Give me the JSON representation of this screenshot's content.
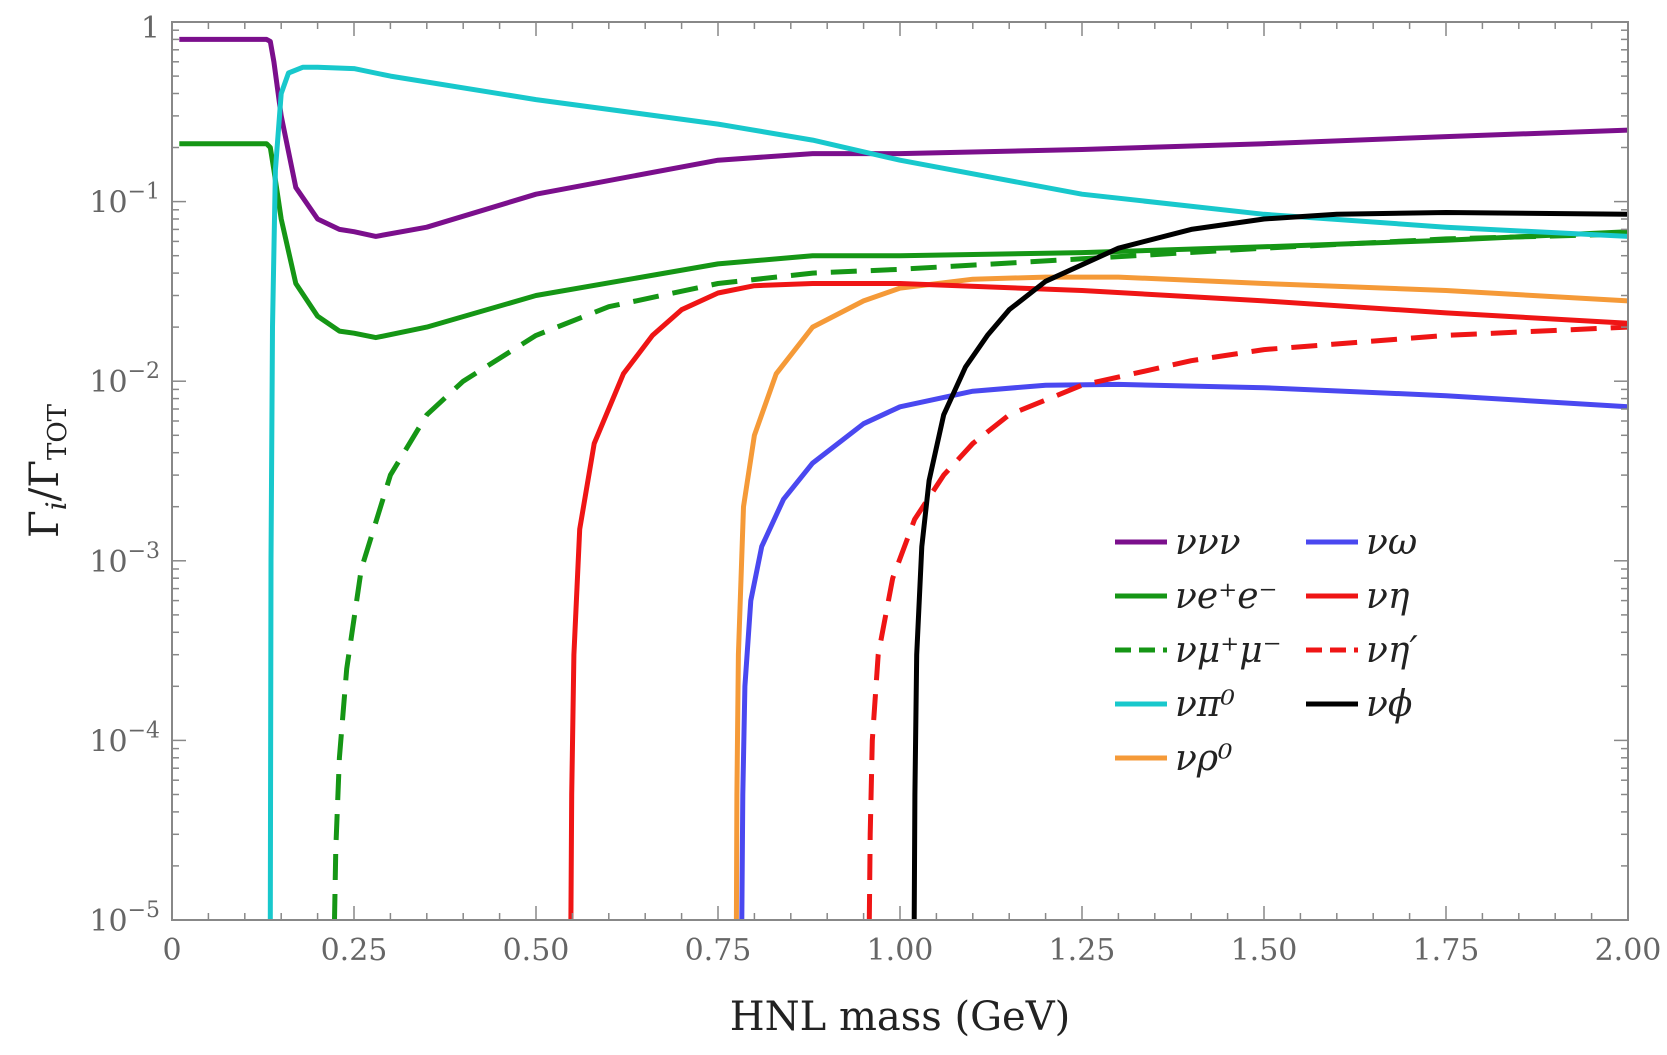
{
  "chart_data": {
    "type": "line",
    "title": "",
    "xlabel": "HNL mass (GeV)",
    "ylabel": "Γi/ΓTOT",
    "xlim": [
      0,
      2.0
    ],
    "ylim": [
      1e-05,
      1
    ],
    "yscale": "log",
    "x_ticks": [
      "0",
      "0.25",
      "0.50",
      "0.75",
      "1.00",
      "1.25",
      "1.50",
      "1.75",
      "2.00"
    ],
    "y_ticks": [
      {
        "value": 1e-05,
        "base": "10",
        "exp": "−5"
      },
      {
        "value": 0.0001,
        "base": "10",
        "exp": "−4"
      },
      {
        "value": 0.001,
        "base": "10",
        "exp": "−3"
      },
      {
        "value": 0.01,
        "base": "10",
        "exp": "−2"
      },
      {
        "value": 0.1,
        "base": "10",
        "exp": "−1"
      },
      {
        "value": 1,
        "base": "1",
        "exp": ""
      }
    ],
    "legend_position": "lower-right",
    "grid": false,
    "series": [
      {
        "name": "ννν",
        "color": "#7b0f8c",
        "dash": false,
        "x": [
          0.01,
          0.13,
          0.135,
          0.14,
          0.15,
          0.17,
          0.2,
          0.23,
          0.25,
          0.28,
          0.35,
          0.5,
          0.75,
          0.88,
          1.0,
          1.25,
          1.5,
          1.75,
          2.0
        ],
        "y": [
          0.8,
          0.8,
          0.78,
          0.6,
          0.3,
          0.12,
          0.08,
          0.07,
          0.068,
          0.064,
          0.072,
          0.11,
          0.17,
          0.185,
          0.185,
          0.195,
          0.21,
          0.23,
          0.25
        ]
      },
      {
        "name": "νe⁺e⁻",
        "color": "#159615",
        "dash": false,
        "x": [
          0.01,
          0.13,
          0.135,
          0.14,
          0.15,
          0.17,
          0.2,
          0.23,
          0.25,
          0.28,
          0.35,
          0.5,
          0.75,
          0.88,
          1.0,
          1.25,
          1.5,
          1.75,
          2.0
        ],
        "y": [
          0.21,
          0.21,
          0.2,
          0.15,
          0.08,
          0.035,
          0.023,
          0.019,
          0.0185,
          0.0175,
          0.02,
          0.03,
          0.045,
          0.05,
          0.05,
          0.052,
          0.056,
          0.061,
          0.068
        ]
      },
      {
        "name": "νμ⁺μ⁻",
        "color": "#159615",
        "dash": true,
        "x": [
          0.2232,
          0.225,
          0.23,
          0.24,
          0.26,
          0.3,
          0.35,
          0.4,
          0.5,
          0.6,
          0.75,
          0.88,
          1.0,
          1.25,
          1.5,
          1.75,
          2.0
        ],
        "y": [
          1e-05,
          2.5e-05,
          8e-05,
          0.00025,
          0.0009,
          0.003,
          0.0065,
          0.01,
          0.018,
          0.026,
          0.035,
          0.04,
          0.042,
          0.048,
          0.055,
          0.062,
          0.066
        ]
      },
      {
        "name": "νπ⁰",
        "color": "#18c8cc",
        "dash": false,
        "x": [
          0.135,
          0.136,
          0.138,
          0.142,
          0.15,
          0.16,
          0.18,
          0.2,
          0.25,
          0.3,
          0.5,
          0.75,
          0.88,
          1.0,
          1.25,
          1.5,
          1.75,
          2.0
        ],
        "y": [
          1e-05,
          0.001,
          0.02,
          0.15,
          0.4,
          0.52,
          0.56,
          0.56,
          0.55,
          0.5,
          0.37,
          0.27,
          0.22,
          0.17,
          0.11,
          0.085,
          0.072,
          0.064
        ]
      },
      {
        "name": "νρ⁰",
        "color": "#f59a38",
        "dash": false,
        "x": [
          0.7753,
          0.776,
          0.778,
          0.785,
          0.8,
          0.83,
          0.88,
          0.95,
          1.0,
          1.1,
          1.2,
          1.3,
          1.5,
          1.75,
          2.0
        ],
        "y": [
          1e-05,
          5e-05,
          0.0003,
          0.002,
          0.005,
          0.011,
          0.02,
          0.028,
          0.033,
          0.037,
          0.038,
          0.038,
          0.035,
          0.032,
          0.028
        ]
      },
      {
        "name": "νω",
        "color": "#4a48f0",
        "dash": false,
        "x": [
          0.7827,
          0.784,
          0.787,
          0.795,
          0.81,
          0.84,
          0.88,
          0.95,
          1.0,
          1.1,
          1.2,
          1.3,
          1.5,
          1.75,
          2.0
        ],
        "y": [
          1e-05,
          5e-05,
          0.0002,
          0.0006,
          0.0012,
          0.0022,
          0.0035,
          0.0058,
          0.0072,
          0.0088,
          0.0095,
          0.0096,
          0.0092,
          0.0083,
          0.0072
        ]
      },
      {
        "name": "νη",
        "color": "#ef1515",
        "dash": false,
        "x": [
          0.5479,
          0.549,
          0.552,
          0.56,
          0.58,
          0.62,
          0.66,
          0.7,
          0.75,
          0.8,
          0.88,
          1.0,
          1.25,
          1.5,
          1.75,
          2.0
        ],
        "y": [
          1e-05,
          5e-05,
          0.0003,
          0.0015,
          0.0045,
          0.011,
          0.018,
          0.025,
          0.031,
          0.034,
          0.035,
          0.035,
          0.032,
          0.028,
          0.024,
          0.021
        ]
      },
      {
        "name": "νη′",
        "color": "#ef1515",
        "dash": true,
        "x": [
          0.9578,
          0.959,
          0.962,
          0.97,
          0.99,
          1.02,
          1.06,
          1.1,
          1.15,
          1.25,
          1.4,
          1.5,
          1.75,
          2.0
        ],
        "y": [
          1e-05,
          3e-05,
          0.0001,
          0.0003,
          0.0008,
          0.0017,
          0.003,
          0.0045,
          0.0065,
          0.0095,
          0.013,
          0.015,
          0.018,
          0.02
        ]
      },
      {
        "name": "νϕ",
        "color": "#000000",
        "dash": false,
        "x": [
          1.0195,
          1.0205,
          1.023,
          1.03,
          1.04,
          1.06,
          1.09,
          1.12,
          1.15,
          1.2,
          1.3,
          1.4,
          1.5,
          1.6,
          1.75,
          2.0
        ],
        "y": [
          1e-05,
          5e-05,
          0.0003,
          0.0012,
          0.0028,
          0.0065,
          0.012,
          0.018,
          0.025,
          0.036,
          0.055,
          0.07,
          0.08,
          0.085,
          0.087,
          0.085
        ]
      }
    ]
  }
}
